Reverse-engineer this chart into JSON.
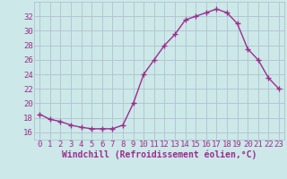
{
  "x": [
    0,
    1,
    2,
    3,
    4,
    5,
    6,
    7,
    8,
    9,
    10,
    11,
    12,
    13,
    14,
    15,
    16,
    17,
    18,
    19,
    20,
    21,
    22,
    23
  ],
  "y": [
    18.5,
    17.8,
    17.5,
    17.0,
    16.7,
    16.5,
    16.5,
    16.5,
    17.0,
    20.0,
    24.0,
    26.0,
    28.0,
    29.5,
    31.5,
    32.0,
    32.5,
    33.0,
    32.5,
    31.0,
    27.5,
    26.0,
    23.5,
    22.0
  ],
  "line_color": "#9b2d8e",
  "bg_color": "#cce8e8",
  "grid_color": "#aabbcc",
  "xlabel": "Windchill (Refroidissement éolien,°C)",
  "ylabel_ticks": [
    16,
    18,
    20,
    22,
    24,
    26,
    28,
    30,
    32
  ],
  "ylim": [
    15.0,
    34.0
  ],
  "xlim": [
    -0.5,
    23.5
  ],
  "xtick_labels": [
    "0",
    "1",
    "2",
    "3",
    "4",
    "5",
    "6",
    "7",
    "8",
    "9",
    "10",
    "11",
    "12",
    "13",
    "14",
    "15",
    "16",
    "17",
    "18",
    "19",
    "20",
    "21",
    "22",
    "23"
  ],
  "marker": "+",
  "marker_size": 4,
  "line_width": 1.0,
  "font_size": 6.5,
  "xlabel_fontsize": 7.0
}
